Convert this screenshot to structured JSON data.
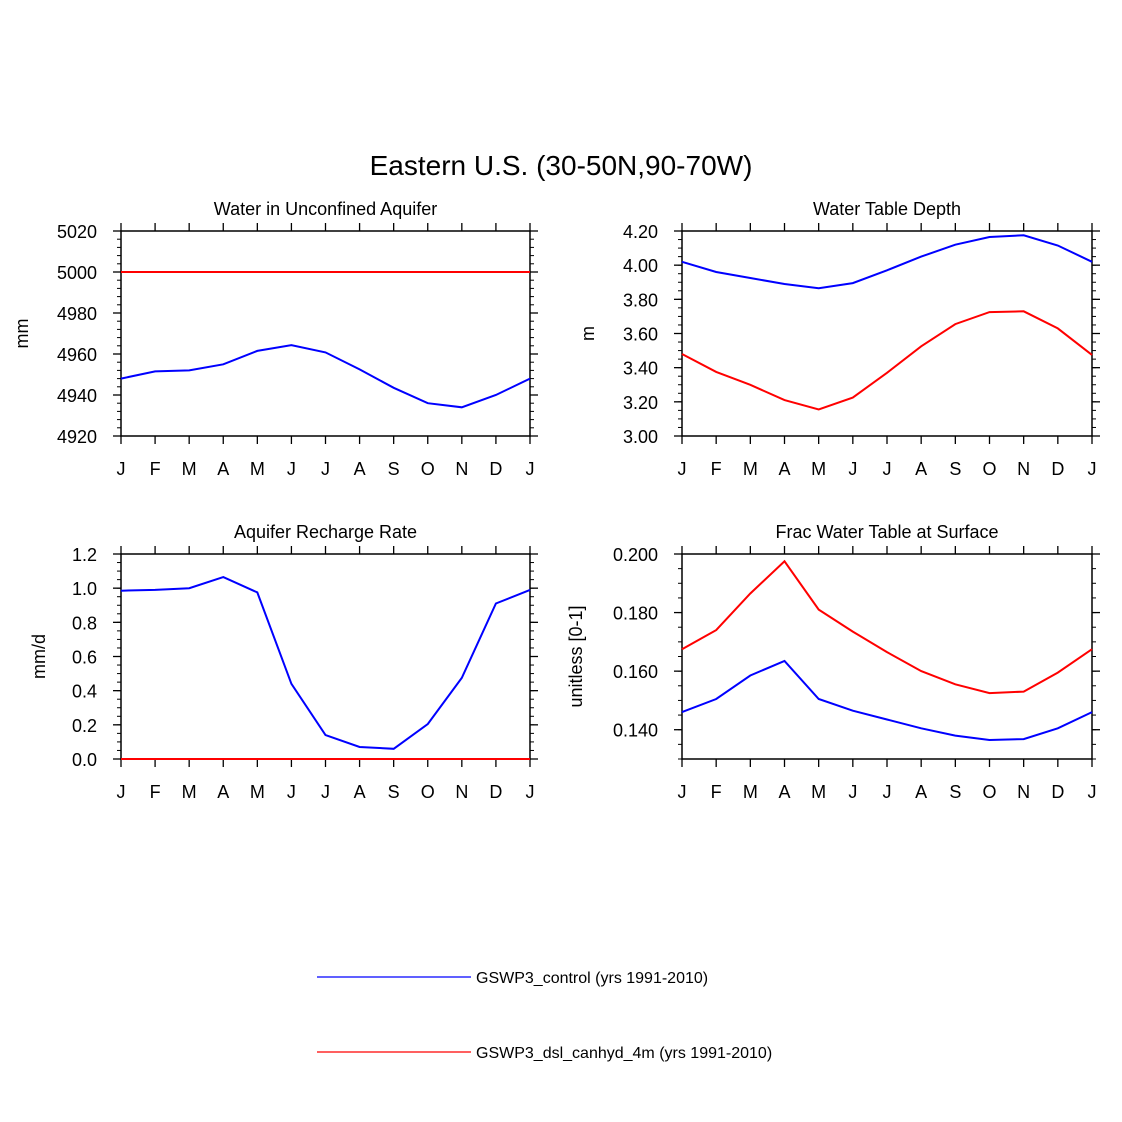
{
  "main_title": "Eastern U.S. (30-50N,90-70W)",
  "colors": {
    "control": "#0000ff",
    "experiment": "#ff0000",
    "axis": "#000000"
  },
  "legend": [
    {
      "label": "GSWP3_control (yrs 1991-2010)",
      "color": "#0000ff"
    },
    {
      "label": "GSWP3_dsl_canhyd_4m (yrs 1991-2010)",
      "color": "#ff0000"
    }
  ],
  "chart_data": [
    {
      "type": "line",
      "title": "Water in Unconfined Aquifer",
      "xlabel": "",
      "ylabel": "mm",
      "categories": [
        "J",
        "F",
        "M",
        "A",
        "M",
        "J",
        "J",
        "A",
        "S",
        "O",
        "N",
        "D",
        "J"
      ],
      "ylim": [
        4920,
        5020
      ],
      "yticks": [
        4920,
        4940,
        4960,
        4980,
        5000,
        5020
      ],
      "yticklabels": [
        "4920",
        "4940",
        "4960",
        "4980",
        "5000",
        "5020"
      ],
      "yminor": 5,
      "series": [
        {
          "name": "GSWP3_control (yrs 1991-2010)",
          "color": "#0000ff",
          "values": [
            4948,
            4951.5,
            4952,
            4955,
            4961.5,
            4964.3,
            4960.8,
            4952.5,
            4943.5,
            4936,
            4934,
            4940,
            4948
          ]
        },
        {
          "name": "GSWP3_dsl_canhyd_4m (yrs 1991-2010)",
          "color": "#ff0000",
          "values": [
            5000,
            5000,
            5000,
            5000,
            5000,
            5000,
            5000,
            5000,
            5000,
            5000,
            5000,
            5000,
            5000
          ]
        }
      ]
    },
    {
      "type": "line",
      "title": "Water Table Depth",
      "xlabel": "",
      "ylabel": "m",
      "categories": [
        "J",
        "F",
        "M",
        "A",
        "M",
        "J",
        "J",
        "A",
        "S",
        "O",
        "N",
        "D",
        "J"
      ],
      "ylim": [
        3.0,
        4.2
      ],
      "yticks": [
        3.0,
        3.2,
        3.4,
        3.6,
        3.8,
        4.0,
        4.2
      ],
      "yticklabels": [
        "3.00",
        "3.20",
        "3.40",
        "3.60",
        "3.80",
        "4.00",
        "4.20"
      ],
      "yminor": 4,
      "series": [
        {
          "name": "GSWP3_control (yrs 1991-2010)",
          "color": "#0000ff",
          "values": [
            4.02,
            3.96,
            3.925,
            3.89,
            3.865,
            3.895,
            3.97,
            4.05,
            4.12,
            4.165,
            4.175,
            4.115,
            4.02
          ]
        },
        {
          "name": "GSWP3_dsl_canhyd_4m (yrs 1991-2010)",
          "color": "#ff0000",
          "values": [
            3.48,
            3.375,
            3.3,
            3.21,
            3.155,
            3.225,
            3.37,
            3.525,
            3.655,
            3.725,
            3.73,
            3.63,
            3.475
          ]
        }
      ]
    },
    {
      "type": "line",
      "title": "Aquifer Recharge Rate",
      "xlabel": "",
      "ylabel": "mm/d",
      "categories": [
        "J",
        "F",
        "M",
        "A",
        "M",
        "J",
        "J",
        "A",
        "S",
        "O",
        "N",
        "D",
        "J"
      ],
      "ylim": [
        0.0,
        1.2
      ],
      "yticks": [
        0.0,
        0.2,
        0.4,
        0.6,
        0.8,
        1.0,
        1.2
      ],
      "yticklabels": [
        "0.0",
        "0.2",
        "0.4",
        "0.6",
        "0.8",
        "1.0",
        "1.2"
      ],
      "yminor": 4,
      "series": [
        {
          "name": "GSWP3_control (yrs 1991-2010)",
          "color": "#0000ff",
          "values": [
            0.985,
            0.99,
            1.0,
            1.065,
            0.975,
            0.44,
            0.14,
            0.07,
            0.06,
            0.205,
            0.475,
            0.91,
            0.99
          ]
        },
        {
          "name": "GSWP3_dsl_canhyd_4m (yrs 1991-2010)",
          "color": "#ff0000",
          "values": [
            0,
            0,
            0,
            0,
            0,
            0,
            0,
            0,
            0,
            0,
            0,
            0,
            0
          ]
        }
      ]
    },
    {
      "type": "line",
      "title": "Frac Water Table at Surface",
      "xlabel": "",
      "ylabel": "unitless [0-1]",
      "categories": [
        "J",
        "F",
        "M",
        "A",
        "M",
        "J",
        "J",
        "A",
        "S",
        "O",
        "N",
        "D",
        "J"
      ],
      "ylim": [
        0.13,
        0.2
      ],
      "yticks": [
        0.14,
        0.16,
        0.18,
        0.2
      ],
      "yticklabels": [
        "0.140",
        "0.160",
        "0.180",
        "0.200"
      ],
      "yminor": 4,
      "series": [
        {
          "name": "GSWP3_control (yrs 1991-2010)",
          "color": "#0000ff",
          "values": [
            0.146,
            0.1505,
            0.1585,
            0.1635,
            0.1505,
            0.1465,
            0.1435,
            0.1405,
            0.138,
            0.1365,
            0.1368,
            0.1405,
            0.146
          ]
        },
        {
          "name": "GSWP3_dsl_canhyd_4m (yrs 1991-2010)",
          "color": "#ff0000",
          "values": [
            0.1675,
            0.174,
            0.1865,
            0.1975,
            0.181,
            0.1735,
            0.1665,
            0.16,
            0.1555,
            0.1525,
            0.153,
            0.1595,
            0.1675
          ]
        }
      ]
    }
  ]
}
